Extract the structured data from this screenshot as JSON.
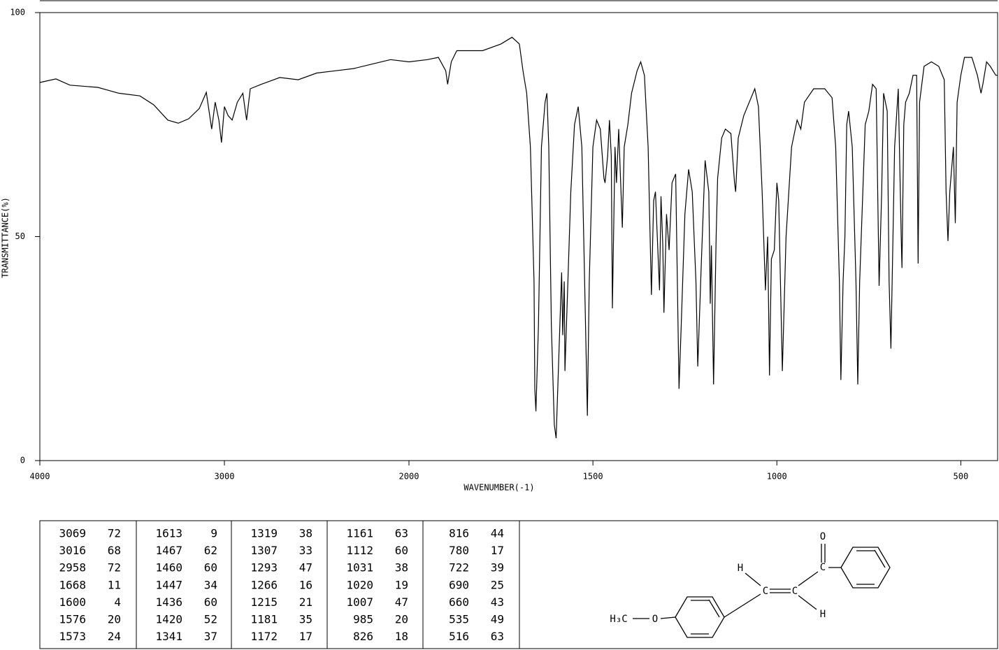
{
  "chart_data": {
    "type": "line",
    "y_label": "TRANSMITTANCE(%)",
    "x_label": "WAVENUMBER(-1)",
    "xlim": [
      4000,
      400
    ],
    "x_scale_break": 2000,
    "xticks": [
      4000,
      3000,
      2000,
      1500,
      1000,
      500
    ],
    "ylim": [
      0,
      100
    ],
    "yticks": [
      0,
      50,
      100
    ],
    "color": "#000000",
    "x": [
      4000,
      3913,
      3837,
      3686,
      3572,
      3458,
      3383,
      3307,
      3250,
      3193,
      3136,
      3098,
      3069,
      3050,
      3030,
      3016,
      3000,
      2980,
      2958,
      2930,
      2900,
      2880,
      2860,
      2800,
      2700,
      2600,
      2500,
      2400,
      2300,
      2200,
      2100,
      2000,
      1950,
      1920,
      1900,
      1895,
      1885,
      1870,
      1800,
      1750,
      1720,
      1700,
      1690,
      1680,
      1670,
      1660,
      1658,
      1655,
      1648,
      1640,
      1630,
      1625,
      1620,
      1613,
      1605,
      1600,
      1590,
      1585,
      1582,
      1578,
      1576,
      1570,
      1560,
      1550,
      1540,
      1530,
      1520,
      1515,
      1510,
      1500,
      1490,
      1480,
      1470,
      1467,
      1460,
      1455,
      1450,
      1447,
      1440,
      1436,
      1430,
      1420,
      1415,
      1405,
      1395,
      1380,
      1370,
      1360,
      1350,
      1341,
      1335,
      1330,
      1325,
      1319,
      1315,
      1310,
      1307,
      1300,
      1293,
      1285,
      1275,
      1266,
      1260,
      1250,
      1240,
      1230,
      1220,
      1215,
      1205,
      1195,
      1185,
      1181,
      1178,
      1172,
      1165,
      1161,
      1150,
      1140,
      1125,
      1115,
      1112,
      1105,
      1090,
      1070,
      1060,
      1050,
      1040,
      1031,
      1025,
      1020,
      1015,
      1007,
      1000,
      995,
      985,
      975,
      960,
      945,
      935,
      925,
      900,
      870,
      850,
      840,
      830,
      826,
      820,
      815,
      810,
      805,
      795,
      785,
      780,
      775,
      760,
      750,
      740,
      730,
      722,
      715,
      710,
      700,
      695,
      690,
      680,
      670,
      662,
      660,
      655,
      650,
      640,
      630,
      620,
      616,
      612,
      600,
      580,
      560,
      545,
      540,
      535,
      530,
      525,
      520,
      515,
      510,
      500,
      490,
      470,
      455,
      445,
      440,
      430,
      420,
      405,
      400
    ],
    "values": [
      84.4,
      85.2,
      83.8,
      83.3,
      82,
      81.4,
      79.4,
      76,
      75.3,
      76.3,
      78.6,
      82.2,
      74,
      80,
      76,
      71,
      79,
      77,
      76,
      80,
      82,
      76,
      83,
      84,
      85.5,
      85,
      86.5,
      87,
      87.5,
      88.5,
      89.5,
      89,
      89.5,
      90,
      87,
      84,
      89,
      91.5,
      91.5,
      93,
      94.5,
      93,
      87,
      82,
      70,
      40,
      16,
      11,
      30,
      70,
      80,
      82,
      70,
      30,
      8,
      5,
      30,
      42,
      28,
      40,
      20,
      35,
      60,
      75,
      79,
      70,
      30,
      10,
      40,
      70,
      76,
      74,
      63,
      62,
      68,
      76,
      68,
      34,
      70,
      62,
      74,
      52,
      70,
      75,
      82,
      87,
      89,
      86,
      70,
      37,
      58,
      60,
      50,
      38,
      59,
      48,
      33,
      55,
      47,
      62,
      64,
      16,
      30,
      55,
      65,
      60,
      40,
      21,
      45,
      67,
      60,
      35,
      48,
      17,
      50,
      63,
      72,
      74,
      73,
      62,
      60,
      72,
      77,
      81,
      83,
      79,
      60,
      38,
      50,
      19,
      45,
      47,
      62,
      58,
      20,
      50,
      70,
      76,
      74,
      80,
      83,
      83,
      81,
      70,
      40,
      18,
      40,
      50,
      75,
      78,
      70,
      40,
      17,
      40,
      75,
      78,
      84,
      83,
      39,
      60,
      82,
      78,
      40,
      25,
      70,
      83,
      50,
      43,
      75,
      80,
      82,
      86,
      86,
      44,
      80,
      88,
      89,
      88,
      85,
      60,
      49,
      60,
      65,
      70,
      53,
      80,
      86,
      90,
      90,
      86,
      82,
      84,
      89,
      88,
      86,
      86
    ]
  },
  "peak_table": {
    "columns": [
      [
        [
          "3069",
          "72"
        ],
        [
          "3016",
          "68"
        ],
        [
          "2958",
          "72"
        ],
        [
          "1668",
          "11"
        ],
        [
          "1600",
          "4"
        ],
        [
          "1576",
          "20"
        ],
        [
          "1573",
          "24"
        ]
      ],
      [
        [
          "1613",
          "9"
        ],
        [
          "1467",
          "62"
        ],
        [
          "1460",
          "60"
        ],
        [
          "1447",
          "34"
        ],
        [
          "1436",
          "60"
        ],
        [
          "1420",
          "52"
        ],
        [
          "1341",
          "37"
        ]
      ],
      [
        [
          "1319",
          "38"
        ],
        [
          "1307",
          "33"
        ],
        [
          "1293",
          "47"
        ],
        [
          "1266",
          "16"
        ],
        [
          "1215",
          "21"
        ],
        [
          "1181",
          "35"
        ],
        [
          "1172",
          "17"
        ]
      ],
      [
        [
          "1161",
          "63"
        ],
        [
          "1112",
          "60"
        ],
        [
          "1031",
          "38"
        ],
        [
          "1020",
          "19"
        ],
        [
          "1007",
          "47"
        ],
        [
          "985",
          "20"
        ],
        [
          "826",
          "18"
        ]
      ],
      [
        [
          "816",
          "44"
        ],
        [
          "780",
          "17"
        ],
        [
          "722",
          "39"
        ],
        [
          "690",
          "25"
        ],
        [
          "660",
          "43"
        ],
        [
          "535",
          "49"
        ],
        [
          "516",
          "63"
        ]
      ]
    ]
  },
  "structure": {
    "carbonyl_o": "O",
    "carbonyl_c": "C",
    "h1": "H",
    "c1": "C",
    "c2": "C",
    "h2": "H",
    "methyl": "H₃C",
    "ether_o": "O"
  }
}
